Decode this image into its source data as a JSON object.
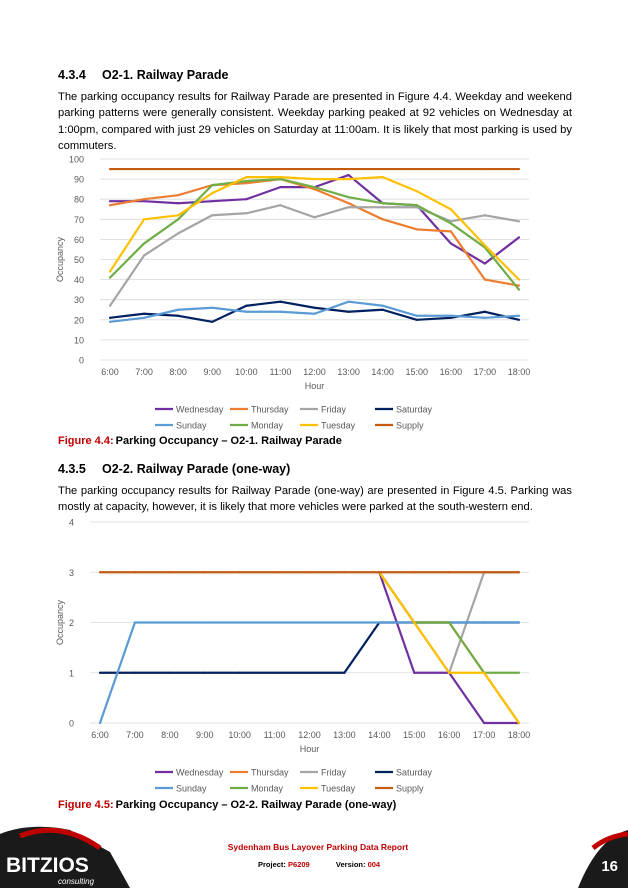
{
  "section1": {
    "number": "4.3.4",
    "title": "O2-1. Railway Parade",
    "paragraph": "The parking occupancy results for Railway Parade are presented in Figure 4.4. Weekday and weekend parking patterns were generally consistent. Weekday parking peaked at 92 vehicles on Wednesday at 1:00pm, compared with just 29 vehicles on Saturday at 11:00am. It is likely that most parking is used by commuters.",
    "caption_label": "Figure 4.4:",
    "caption_text": "Parking Occupancy – O2-1. Railway Parade"
  },
  "section2": {
    "number": "4.3.5",
    "title": "O2-2. Railway Parade (one-way)",
    "paragraph": "The parking occupancy results for Railway Parade (one-way) are presented in Figure 4.5. Parking was mostly at capacity, however, it is likely that more vehicles were parked at the south-western end.",
    "caption_label": "Figure 4.5:",
    "caption_text": "Parking Occupancy – O2-2. Railway Parade (one-way)"
  },
  "footer": {
    "logo_text": "BITZIOS",
    "logo_sub": "consulting",
    "report_title": "Sydenham Bus Layover Parking Data Report",
    "project_label": "Project:",
    "project_value": "P6209",
    "version_label": "Version:",
    "version_value": "004",
    "page_number": "16"
  },
  "colors": {
    "Wednesday": "#7030a0",
    "Thursday": "#ed7d31",
    "Friday": "#a5a5a5",
    "Saturday": "#002060",
    "Sunday": "#5b9bd5",
    "Monday": "#70ad47",
    "Tuesday": "#ffc000",
    "Supply": "#c55a11",
    "accent_red": "#c00000"
  },
  "chart_data": [
    {
      "type": "line",
      "categories": [
        "6:00",
        "7:00",
        "8:00",
        "9:00",
        "10:00",
        "11:00",
        "12:00",
        "13:00",
        "14:00",
        "15:00",
        "16:00",
        "17:00",
        "18:00"
      ],
      "xlabel": "Hour",
      "ylabel": "Occupancy",
      "ylim": [
        0,
        100
      ],
      "yticks": [
        0,
        10,
        20,
        30,
        40,
        50,
        60,
        70,
        80,
        90,
        100
      ],
      "grid": true,
      "legend": "bottom",
      "series": [
        {
          "name": "Wednesday",
          "values": [
            79,
            79,
            78,
            79,
            80,
            86,
            86,
            92,
            78,
            77,
            58,
            48,
            61
          ]
        },
        {
          "name": "Thursday",
          "values": [
            77,
            80,
            82,
            87,
            88,
            90,
            85,
            78,
            70,
            65,
            64,
            40,
            37
          ]
        },
        {
          "name": "Friday",
          "values": [
            27,
            52,
            63,
            72,
            73,
            77,
            71,
            76,
            76,
            76,
            69,
            72,
            69
          ]
        },
        {
          "name": "Saturday",
          "values": [
            21,
            23,
            22,
            19,
            27,
            29,
            26,
            24,
            25,
            20,
            21,
            24,
            20
          ]
        },
        {
          "name": "Sunday",
          "values": [
            19,
            21,
            25,
            26,
            24,
            24,
            23,
            29,
            27,
            22,
            22,
            21,
            22
          ]
        },
        {
          "name": "Monday",
          "values": [
            41,
            58,
            70,
            87,
            89,
            90,
            86,
            81,
            78,
            77,
            68,
            56,
            35
          ]
        },
        {
          "name": "Tuesday",
          "values": [
            44,
            70,
            72,
            83,
            91,
            91,
            90,
            90,
            91,
            84,
            75,
            57,
            40
          ]
        },
        {
          "name": "Supply",
          "values": [
            95,
            95,
            95,
            95,
            95,
            95,
            95,
            95,
            95,
            95,
            95,
            95,
            95
          ]
        }
      ]
    },
    {
      "type": "line",
      "categories": [
        "6:00",
        "7:00",
        "8:00",
        "9:00",
        "10:00",
        "11:00",
        "12:00",
        "13:00",
        "14:00",
        "15:00",
        "16:00",
        "17:00",
        "18:00"
      ],
      "xlabel": "Hour",
      "ylabel": "Occupancy",
      "ylim": [
        0,
        4
      ],
      "yticks": [
        0,
        1,
        2,
        3,
        4
      ],
      "grid": true,
      "legend": "bottom",
      "series": [
        {
          "name": "Wednesday",
          "values": [
            null,
            null,
            null,
            null,
            null,
            null,
            null,
            null,
            3,
            1,
            1,
            0,
            0
          ]
        },
        {
          "name": "Thursday",
          "values": [
            null,
            null,
            null,
            null,
            null,
            null,
            null,
            null,
            3,
            2,
            2,
            1,
            0
          ]
        },
        {
          "name": "Friday",
          "values": [
            null,
            null,
            null,
            null,
            null,
            null,
            null,
            null,
            3,
            2,
            1,
            3,
            3
          ]
        },
        {
          "name": "Saturday",
          "values": [
            1,
            1,
            1,
            1,
            1,
            1,
            1,
            1,
            2,
            2,
            2,
            2,
            2
          ]
        },
        {
          "name": "Sunday",
          "values": [
            0,
            2,
            2,
            2,
            2,
            2,
            2,
            2,
            2,
            2,
            2,
            2,
            2
          ]
        },
        {
          "name": "Monday",
          "values": [
            null,
            null,
            null,
            null,
            null,
            null,
            null,
            null,
            3,
            2,
            2,
            1,
            1
          ]
        },
        {
          "name": "Tuesday",
          "values": [
            null,
            null,
            null,
            null,
            null,
            null,
            null,
            null,
            3,
            2,
            1,
            1,
            0
          ]
        },
        {
          "name": "Supply",
          "values": [
            3,
            3,
            3,
            3,
            3,
            3,
            3,
            3,
            3,
            3,
            3,
            3,
            3
          ]
        }
      ]
    }
  ]
}
